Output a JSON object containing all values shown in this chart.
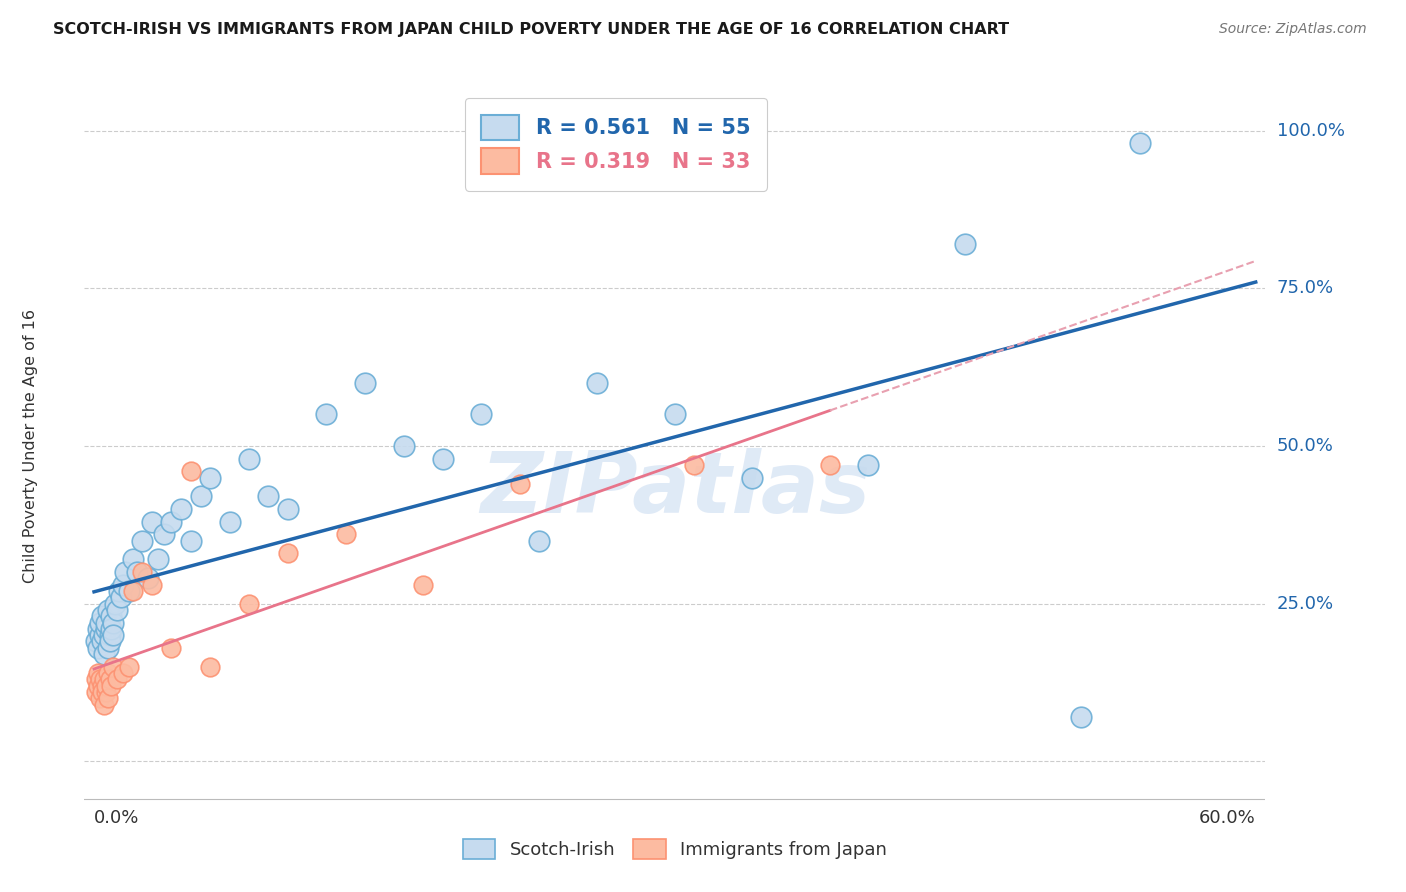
{
  "title": "SCOTCH-IRISH VS IMMIGRANTS FROM JAPAN CHILD POVERTY UNDER THE AGE OF 16 CORRELATION CHART",
  "source": "Source: ZipAtlas.com",
  "ylabel": "Child Poverty Under the Age of 16",
  "watermark": "ZIPatlas",
  "blue_face_color": "#c6dbef",
  "blue_edge_color": "#6baed6",
  "pink_face_color": "#fcbba1",
  "pink_edge_color": "#fc9272",
  "blue_line_color": "#2166ac",
  "pink_line_color": "#e8748a",
  "pink_dash_color": "#e8a0b0",
  "background_color": "#ffffff",
  "grid_color": "#cccccc",
  "blue_label": "R = 0.561   N = 55",
  "pink_label": "R = 0.319   N = 33",
  "blue_r": 0.561,
  "blue_n": 55,
  "pink_r": 0.319,
  "pink_n": 33,
  "xmin": 0.0,
  "xmax": 0.6,
  "ymin": -0.08,
  "ymax": 1.08,
  "ytick_vals": [
    0.0,
    0.25,
    0.5,
    0.75,
    1.0
  ],
  "ytick_labels": [
    "",
    "25.0%",
    "50.0%",
    "75.0%",
    "100.0%"
  ],
  "scotch_irish_x": [
    0.001,
    0.002,
    0.002,
    0.003,
    0.003,
    0.004,
    0.004,
    0.005,
    0.005,
    0.006,
    0.006,
    0.007,
    0.007,
    0.008,
    0.008,
    0.009,
    0.009,
    0.01,
    0.01,
    0.011,
    0.012,
    0.013,
    0.014,
    0.015,
    0.016,
    0.018,
    0.02,
    0.022,
    0.025,
    0.028,
    0.03,
    0.033,
    0.036,
    0.04,
    0.045,
    0.05,
    0.055,
    0.06,
    0.07,
    0.08,
    0.09,
    0.1,
    0.12,
    0.14,
    0.16,
    0.18,
    0.2,
    0.23,
    0.26,
    0.3,
    0.34,
    0.4,
    0.45,
    0.51,
    0.54
  ],
  "scotch_irish_y": [
    0.19,
    0.21,
    0.18,
    0.2,
    0.22,
    0.19,
    0.23,
    0.2,
    0.17,
    0.21,
    0.22,
    0.18,
    0.24,
    0.2,
    0.19,
    0.23,
    0.21,
    0.22,
    0.2,
    0.25,
    0.24,
    0.27,
    0.26,
    0.28,
    0.3,
    0.27,
    0.32,
    0.3,
    0.35,
    0.29,
    0.38,
    0.32,
    0.36,
    0.38,
    0.4,
    0.35,
    0.42,
    0.45,
    0.38,
    0.48,
    0.42,
    0.4,
    0.55,
    0.6,
    0.5,
    0.48,
    0.55,
    0.35,
    0.6,
    0.55,
    0.45,
    0.47,
    0.82,
    0.07,
    0.98
  ],
  "japan_x": [
    0.001,
    0.001,
    0.002,
    0.002,
    0.003,
    0.003,
    0.004,
    0.004,
    0.005,
    0.005,
    0.006,
    0.006,
    0.007,
    0.007,
    0.008,
    0.009,
    0.01,
    0.012,
    0.015,
    0.018,
    0.02,
    0.025,
    0.03,
    0.04,
    0.05,
    0.06,
    0.08,
    0.1,
    0.13,
    0.17,
    0.22,
    0.31,
    0.38
  ],
  "japan_y": [
    0.13,
    0.11,
    0.14,
    0.12,
    0.13,
    0.1,
    0.12,
    0.11,
    0.09,
    0.13,
    0.11,
    0.12,
    0.14,
    0.1,
    0.13,
    0.12,
    0.15,
    0.13,
    0.14,
    0.15,
    0.27,
    0.3,
    0.28,
    0.18,
    0.46,
    0.15,
    0.25,
    0.33,
    0.36,
    0.28,
    0.44,
    0.47,
    0.47
  ]
}
